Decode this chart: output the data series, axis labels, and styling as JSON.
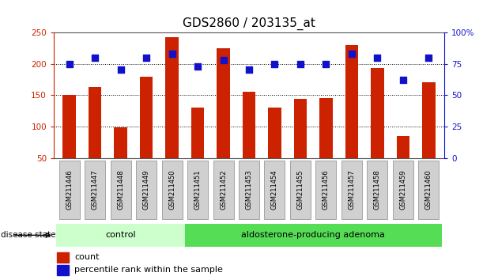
{
  "title": "GDS2860 / 203135_at",
  "samples": [
    "GSM211446",
    "GSM211447",
    "GSM211448",
    "GSM211449",
    "GSM211450",
    "GSM211451",
    "GSM211452",
    "GSM211453",
    "GSM211454",
    "GSM211455",
    "GSM211456",
    "GSM211457",
    "GSM211458",
    "GSM211459",
    "GSM211460"
  ],
  "counts": [
    150,
    163,
    99,
    179,
    242,
    130,
    225,
    155,
    130,
    144,
    145,
    230,
    193,
    85,
    171
  ],
  "percentiles": [
    75,
    80,
    70,
    80,
    83,
    73,
    78,
    70,
    75,
    75,
    75,
    83,
    80,
    62,
    80
  ],
  "bar_color": "#cc2200",
  "dot_color": "#1111cc",
  "ylim_left": [
    50,
    250
  ],
  "ylim_right": [
    0,
    100
  ],
  "yticks_left": [
    50,
    100,
    150,
    200,
    250
  ],
  "yticks_right": [
    0,
    25,
    50,
    75,
    100
  ],
  "control_count": 5,
  "adenoma_count": 10,
  "control_label": "control",
  "adenoma_label": "aldosterone-producing adenoma",
  "disease_state_label": "disease state",
  "legend_count": "count",
  "legend_percentile": "percentile rank within the sample",
  "control_color": "#ccffcc",
  "adenoma_color": "#55dd55",
  "bg_color": "#ffffff",
  "tick_box_color": "#d0d0d0",
  "tick_box_edge": "#999999",
  "title_fontsize": 11
}
